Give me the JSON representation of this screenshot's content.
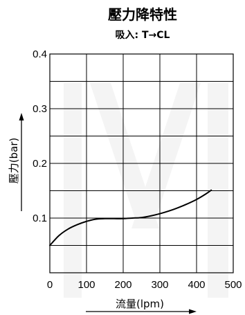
{
  "chart_data": {
    "type": "line",
    "title": "壓力降特性",
    "subtitle": "吸入: T→CL",
    "xlabel": "流量(lpm)",
    "ylabel": "壓力(bar)",
    "xlim": [
      0,
      500
    ],
    "ylim": [
      0,
      0.4
    ],
    "x_ticks": [
      {
        "value": 0,
        "label": "0"
      },
      {
        "value": 100,
        "label": "100"
      },
      {
        "value": 200,
        "label": "200"
      },
      {
        "value": 300,
        "label": "300"
      },
      {
        "value": 400,
        "label": "400"
      },
      {
        "value": 500,
        "label": "500"
      }
    ],
    "y_ticks": [
      {
        "value": 0.1,
        "label": "0.1"
      },
      {
        "value": 0.2,
        "label": "0.2"
      },
      {
        "value": 0.3,
        "label": "0.3"
      },
      {
        "value": 0.4,
        "label": "0.4"
      }
    ],
    "grid": true,
    "grid_x_step": 100,
    "grid_y_step": 0.05,
    "legend": "none",
    "series": [
      {
        "x": [
          0,
          25,
          50,
          75,
          100,
          125,
          150,
          175,
          200,
          225,
          250,
          275,
          300,
          325,
          350,
          375,
          400,
          425,
          440
        ],
        "values": [
          0.05,
          0.068,
          0.08,
          0.088,
          0.094,
          0.098,
          0.099,
          0.099,
          0.099,
          0.1,
          0.101,
          0.104,
          0.108,
          0.113,
          0.119,
          0.126,
          0.134,
          0.144,
          0.151
        ]
      }
    ]
  },
  "colors": {
    "line": "#000000",
    "grid": "#000000",
    "watermark": "#f4f4f4"
  }
}
